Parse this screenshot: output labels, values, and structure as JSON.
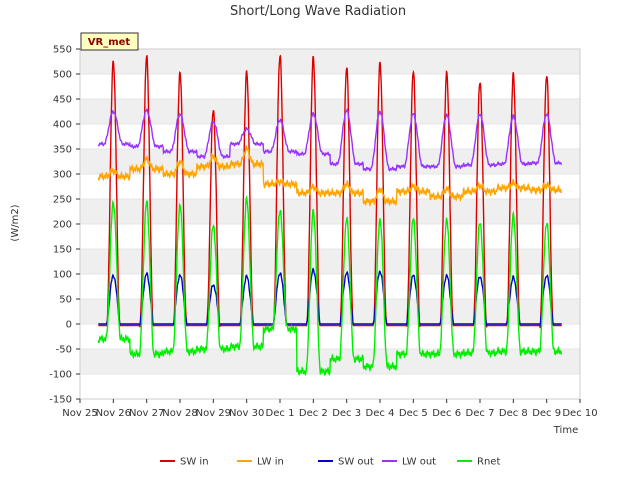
{
  "chart_data": {
    "type": "line",
    "title": "Short/Long Wave Radiation",
    "station_label": "VR_met",
    "xlabel": "Time",
    "ylabel": "(W/m2)",
    "ylim": [
      -150,
      550
    ],
    "yticks": [
      -150,
      -100,
      -50,
      0,
      50,
      100,
      150,
      200,
      250,
      300,
      350,
      400,
      450,
      500,
      550
    ],
    "xlim": [
      0,
      15
    ],
    "xtick_labels": [
      "Nov 25",
      "Nov 26",
      "Nov 27",
      "Nov 28",
      "Nov 29",
      "Nov 30",
      "Dec 1",
      "Dec 2",
      "Dec 3",
      "Dec 4",
      "Dec 5",
      "Dec 6",
      "Dec 7",
      "Dec 8",
      "Dec 9",
      "Dec 10"
    ],
    "data_start_day": 0.55,
    "data_end_day": 14.45,
    "series": [
      {
        "name": "SW in",
        "color": "#dd0000",
        "baseline": -3,
        "daily_peak": [
          530,
          537,
          507,
          432,
          505,
          543,
          535,
          515,
          527,
          507,
          505,
          490,
          500,
          502
        ]
      },
      {
        "name": "LW in",
        "color": "#ffa500",
        "daily_level": [
          295,
          310,
          300,
          315,
          320,
          280,
          262,
          262,
          245,
          265,
          255,
          265,
          272,
          268
        ],
        "day_bump": [
          12,
          20,
          25,
          20,
          30,
          5,
          12,
          18,
          25,
          10,
          15,
          12,
          10,
          10
        ]
      },
      {
        "name": "SW out",
        "color": "#0000cc",
        "baseline": 0,
        "daily_peak": [
          97,
          100,
          98,
          78,
          95,
          102,
          108,
          102,
          105,
          97,
          97,
          95,
          93,
          97
        ]
      },
      {
        "name": "LW out",
        "color": "#9933ff",
        "daily_level": [
          360,
          355,
          345,
          335,
          360,
          345,
          340,
          320,
          310,
          315,
          315,
          318,
          320,
          322
        ],
        "daily_peak": [
          425,
          427,
          420,
          405,
          390,
          408,
          420,
          427,
          425,
          420,
          418,
          420,
          415,
          420
        ]
      },
      {
        "name": "Rnet",
        "color": "#00ee00",
        "night_level": [
          -30,
          -60,
          -55,
          -50,
          -45,
          -10,
          -95,
          -70,
          -85,
          -60,
          -60,
          -58,
          -55,
          -55
        ],
        "daily_peak": [
          243,
          243,
          238,
          198,
          248,
          228,
          225,
          210,
          210,
          210,
          208,
          205,
          215,
          203
        ]
      }
    ],
    "legend_position": "bottom-center",
    "grid": true
  }
}
